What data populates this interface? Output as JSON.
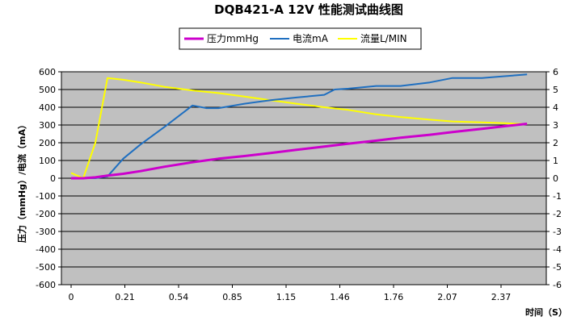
{
  "chart_data": {
    "type": "line",
    "title": "DQB421-A 12V 性能测试曲线图",
    "xlabel": "时间（S）",
    "ylabel": "压力（mmHg）/电流（mA）",
    "y2label": "",
    "x_ticks": [
      "0",
      "0.21",
      "0.54",
      "0.85",
      "1.15",
      "1.46",
      "1.76",
      "2.07",
      "2.37"
    ],
    "ylim": [
      -600,
      600
    ],
    "y_ticks": [
      -600,
      -500,
      -400,
      -300,
      -200,
      -100,
      0,
      100,
      200,
      300,
      400,
      500,
      600
    ],
    "y2lim": [
      -6,
      6
    ],
    "y2_ticks": [
      -6,
      -5,
      -4,
      -3,
      -2,
      -1,
      0,
      1,
      2,
      3,
      4,
      5,
      6
    ],
    "grid": true,
    "legend_position": "top",
    "series": [
      {
        "name": "压力mmHg",
        "axis": "left",
        "color": "#cc00cc",
        "x": [
          0,
          0.07,
          0.14,
          0.21,
          0.3,
          0.4,
          0.54,
          0.7,
          0.85,
          1.0,
          1.15,
          1.3,
          1.46,
          1.6,
          1.76,
          1.9,
          2.07,
          2.2,
          2.37,
          2.5,
          2.63
        ],
        "values": [
          0,
          0,
          5,
          15,
          25,
          40,
          65,
          90,
          110,
          125,
          142,
          160,
          178,
          195,
          212,
          228,
          245,
          260,
          278,
          293,
          307
        ]
      },
      {
        "name": "电流mA",
        "axis": "left",
        "color": "#1f6fc0",
        "x": [
          0,
          0.07,
          0.14,
          0.21,
          0.3,
          0.4,
          0.54,
          0.7,
          0.78,
          0.85,
          1.0,
          1.15,
          1.3,
          1.46,
          1.52,
          1.6,
          1.76,
          1.9,
          2.07,
          2.2,
          2.37,
          2.5,
          2.63
        ],
        "values": [
          0,
          0,
          0,
          10,
          110,
          190,
          290,
          410,
          395,
          395,
          420,
          440,
          455,
          470,
          500,
          505,
          520,
          520,
          540,
          565,
          565,
          575,
          585
        ]
      },
      {
        "name": "流量L/MIN",
        "axis": "right",
        "color": "#ffff00",
        "x": [
          0,
          0.07,
          0.14,
          0.21,
          0.3,
          0.4,
          0.54,
          0.7,
          0.85,
          1.0,
          1.15,
          1.3,
          1.46,
          1.6,
          1.76,
          1.9,
          2.07,
          2.2,
          2.37,
          2.5,
          2.63
        ],
        "values": [
          0.3,
          0.0,
          2.0,
          5.65,
          5.55,
          5.4,
          5.15,
          4.95,
          4.8,
          4.6,
          4.4,
          4.2,
          4.0,
          3.85,
          3.6,
          3.45,
          3.3,
          3.2,
          3.15,
          3.1,
          3.05
        ]
      }
    ]
  }
}
